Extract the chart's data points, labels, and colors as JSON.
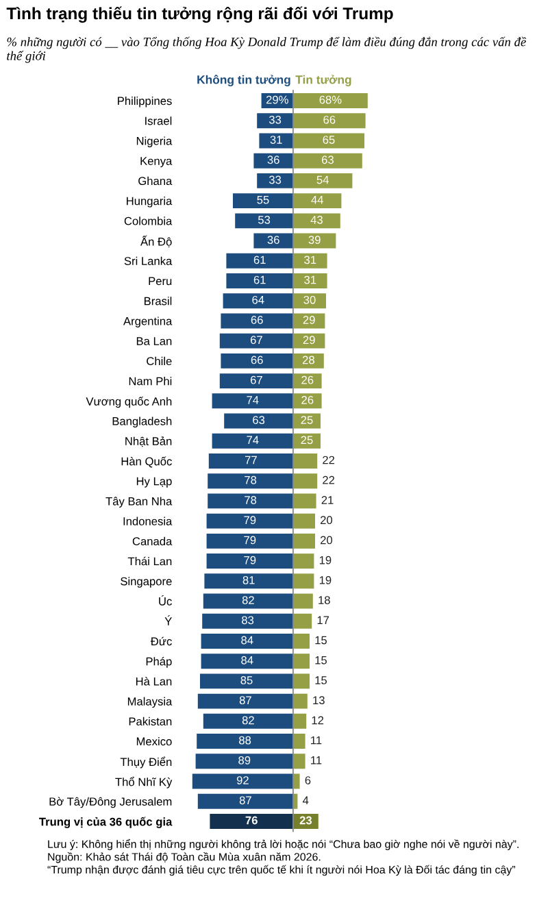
{
  "chart_data": [
    {
      "type": "bar",
      "orientation": "horizontal",
      "title": "Tình trạng thiếu tin tưởng rộng rãi đối với Trump",
      "subtitle": "% những người có __ vào Tổng thống Hoa Kỳ Donald Trump để làm điều đúng đắn trong các vấn đề thế giới",
      "categories": [
        "Philippines",
        "Israel",
        "Nigeria",
        "Kenya",
        "Ghana",
        "Hungaria",
        "Colombia",
        "Ấn Độ",
        "Sri Lanka",
        "Peru",
        "Brasil",
        "Argentina",
        "Ba Lan",
        "Chile",
        "Nam Phi",
        "Vương quốc Anh",
        "Bangladesh",
        "Nhật Bản",
        "Hàn Quốc",
        "Hy Lạp",
        "Tây Ban Nha",
        "Indonesia",
        "Canada",
        "Thái Lan",
        "Singapore",
        "Úc",
        "Ý",
        "Đức",
        "Pháp",
        "Hà Lan",
        "Malaysia",
        "Pakistan",
        "Mexico",
        "Thụy Điển",
        "Thổ Nhĩ Kỳ",
        "Bờ Tây/Đông Jerusalem",
        "Trung vị của 36 quốc gia"
      ],
      "series": [
        {
          "name": "Không tin tưởng",
          "color": "#1d4d7e",
          "colors": [
            "#1d4d7e",
            "#1d4d7e",
            "#1d4d7e",
            "#1d4d7e",
            "#1d4d7e",
            "#1d4d7e",
            "#1d4d7e",
            "#1d4d7e",
            "#1d4d7e",
            "#1d4d7e",
            "#1d4d7e",
            "#1d4d7e",
            "#1d4d7e",
            "#1d4d7e",
            "#1d4d7e",
            "#1d4d7e",
            "#1d4d7e",
            "#1d4d7e",
            "#1d4d7e",
            "#1d4d7e",
            "#1d4d7e",
            "#1d4d7e",
            "#1d4d7e",
            "#1d4d7e",
            "#1d4d7e",
            "#1d4d7e",
            "#1d4d7e",
            "#1d4d7e",
            "#1d4d7e",
            "#1d4d7e",
            "#1d4d7e",
            "#1d4d7e",
            "#1d4d7e",
            "#1d4d7e",
            "#1d4d7e",
            "#1d4d7e",
            "#13304f"
          ],
          "values": [
            29,
            33,
            31,
            36,
            33,
            55,
            53,
            36,
            61,
            61,
            64,
            66,
            67,
            66,
            67,
            74,
            63,
            74,
            77,
            78,
            78,
            79,
            79,
            79,
            81,
            82,
            83,
            84,
            84,
            85,
            87,
            82,
            88,
            89,
            92,
            87,
            76
          ],
          "value_labels": [
            "29%",
            "33",
            "31",
            "36",
            "33",
            "55",
            "53",
            "36",
            "61",
            "61",
            "64",
            "66",
            "67",
            "66",
            "67",
            "74",
            "63",
            "74",
            "77",
            "78",
            "78",
            "79",
            "79",
            "79",
            "81",
            "82",
            "83",
            "84",
            "84",
            "85",
            "87",
            "82",
            "88",
            "89",
            "92",
            "87",
            "76"
          ]
        }
      ],
      "tick_labels": "y",
      "annotations": [
        "Lưu ý: Không hiển thị những người không trả lời hoặc nói “Chưa bao giờ nghe nói về người này”.",
        "Nguồn: Khảo sát Thái độ Toàn cầu Mùa xuân năm 2026.",
        "“Trump nhận được đánh giá tiêu cực trên quốc tế khi ít người nói Hoa Kỳ là Đối tác đáng tin cậy”"
      ]
    },
    {
      "type": "bar",
      "orientation": "horizontal",
      "categories": [
        null,
        null,
        null,
        null,
        null,
        null,
        null,
        null,
        null,
        null,
        null,
        null,
        null,
        null,
        null,
        null,
        null,
        null,
        null,
        null,
        null,
        null,
        null,
        null,
        null,
        null,
        null,
        null,
        null,
        null,
        null,
        null,
        null,
        null,
        null,
        null,
        null
      ],
      "series": [
        {
          "name": "Tin tưởng",
          "color": "#959f45",
          "colors": [
            "#959f45",
            "#959f45",
            "#959f45",
            "#959f45",
            "#959f45",
            "#959f45",
            "#959f45",
            "#959f45",
            "#959f45",
            "#959f45",
            "#959f45",
            "#959f45",
            "#959f45",
            "#959f45",
            "#959f45",
            "#959f45",
            "#959f45",
            "#959f45",
            "#959f45",
            "#959f45",
            "#959f45",
            "#959f45",
            "#959f45",
            "#959f45",
            "#959f45",
            "#959f45",
            "#959f45",
            "#959f45",
            "#959f45",
            "#959f45",
            "#959f45",
            "#959f45",
            "#959f45",
            "#959f45",
            "#959f45",
            "#959f45",
            "#76802c"
          ],
          "values": [
            68,
            66,
            65,
            63,
            54,
            44,
            43,
            39,
            31,
            31,
            30,
            29,
            29,
            28,
            26,
            26,
            25,
            25,
            22,
            22,
            21,
            20,
            20,
            19,
            19,
            18,
            17,
            15,
            15,
            15,
            13,
            12,
            11,
            11,
            6,
            4,
            23
          ],
          "value_labels": [
            "68%",
            "66",
            "65",
            "63",
            "54",
            "44",
            "43",
            "39",
            "31",
            "31",
            "30",
            "29",
            "29",
            "28",
            "26",
            "26",
            "25",
            "25",
            "22",
            "22",
            "21",
            "20",
            "20",
            "19",
            "19",
            "18",
            "17",
            "15",
            "15",
            "15",
            "13",
            "12",
            "11",
            "11",
            "6",
            "4",
            "23"
          ]
        }
      ],
      "tick_labels": false
    }
  ]
}
